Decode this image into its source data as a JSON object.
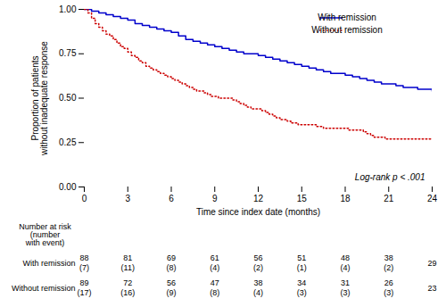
{
  "chart_data": {
    "type": "step",
    "xlabel": "Time since index date (months)",
    "ylabel": "Proportion of patients\nwithout inadequate response",
    "series": [
      {
        "name": "With remission",
        "color": "#0000CC",
        "line_style": "solid",
        "x": [
          0,
          0.5,
          1,
          1.5,
          2,
          2.5,
          3,
          3.5,
          4,
          4.5,
          5,
          5.5,
          6,
          6.5,
          7,
          7.5,
          8,
          8.5,
          9,
          9.5,
          10,
          10.5,
          11,
          11.5,
          12,
          12.5,
          13,
          13.5,
          14,
          14.5,
          15,
          15.5,
          16,
          16.5,
          17,
          17.5,
          18,
          18.5,
          19,
          19.5,
          20,
          20.5,
          21,
          21.5,
          22,
          22.5,
          23,
          23.5,
          24
        ],
        "values": [
          1.0,
          0.99,
          0.98,
          0.97,
          0.96,
          0.95,
          0.94,
          0.92,
          0.91,
          0.9,
          0.89,
          0.88,
          0.87,
          0.85,
          0.83,
          0.82,
          0.81,
          0.8,
          0.79,
          0.78,
          0.77,
          0.76,
          0.75,
          0.75,
          0.74,
          0.73,
          0.72,
          0.71,
          0.7,
          0.69,
          0.68,
          0.67,
          0.66,
          0.65,
          0.64,
          0.64,
          0.63,
          0.62,
          0.61,
          0.6,
          0.59,
          0.58,
          0.58,
          0.57,
          0.56,
          0.56,
          0.55,
          0.55,
          0.54
        ]
      },
      {
        "name": "Without remission",
        "color": "#CC0000",
        "line_style": "dotted",
        "x": [
          0,
          0.25,
          0.5,
          0.75,
          1.0,
          1.25,
          1.5,
          1.75,
          2.0,
          2.25,
          2.5,
          2.75,
          3.0,
          3.25,
          3.5,
          3.75,
          4.0,
          4.25,
          4.5,
          4.75,
          5.0,
          5.25,
          5.5,
          5.75,
          6.0,
          6.25,
          6.5,
          6.75,
          7.0,
          7.25,
          7.5,
          7.75,
          8.0,
          8.25,
          8.5,
          8.75,
          9.0,
          9.25,
          9.5,
          9.75,
          10.0,
          10.25,
          10.5,
          10.75,
          11.0,
          11.25,
          11.5,
          11.75,
          12.0,
          12.25,
          12.5,
          12.75,
          13.0,
          13.25,
          13.5,
          13.75,
          14.0,
          14.25,
          14.5,
          14.75,
          15.0,
          15.25,
          15.5,
          15.75,
          16.0,
          16.25,
          16.5,
          16.75,
          17.0,
          17.25,
          17.5,
          17.75,
          18.0,
          18.25,
          18.5,
          18.75,
          19.0,
          19.25,
          19.5,
          19.75,
          20.0,
          20.25,
          20.5,
          20.75,
          21.0,
          21.25,
          21.5,
          21.75,
          22.0,
          22.25,
          22.5,
          22.75,
          23.0,
          23.25,
          23.5,
          23.75,
          24.0
        ],
        "values": [
          1.0,
          0.98,
          0.95,
          0.92,
          0.9,
          0.88,
          0.86,
          0.85,
          0.83,
          0.81,
          0.79,
          0.78,
          0.76,
          0.74,
          0.73,
          0.71,
          0.7,
          0.68,
          0.67,
          0.66,
          0.65,
          0.64,
          0.63,
          0.62,
          0.61,
          0.6,
          0.59,
          0.58,
          0.57,
          0.56,
          0.55,
          0.54,
          0.54,
          0.53,
          0.52,
          0.51,
          0.51,
          0.5,
          0.5,
          0.5,
          0.5,
          0.49,
          0.48,
          0.47,
          0.46,
          0.45,
          0.44,
          0.44,
          0.44,
          0.43,
          0.42,
          0.41,
          0.4,
          0.39,
          0.38,
          0.38,
          0.37,
          0.36,
          0.36,
          0.35,
          0.35,
          0.35,
          0.35,
          0.35,
          0.34,
          0.34,
          0.33,
          0.33,
          0.33,
          0.33,
          0.33,
          0.33,
          0.33,
          0.32,
          0.32,
          0.32,
          0.32,
          0.31,
          0.3,
          0.29,
          0.28,
          0.28,
          0.28,
          0.27,
          0.27,
          0.27,
          0.27,
          0.27,
          0.27,
          0.27,
          0.27,
          0.27,
          0.27,
          0.27,
          0.27,
          0.27,
          0.27
        ]
      }
    ],
    "xlim": [
      0,
      24
    ],
    "ylim": [
      0.0,
      1.0
    ],
    "xticks": [
      0,
      3,
      6,
      9,
      12,
      15,
      18,
      21,
      24
    ],
    "yticks": [
      {
        "value": 0.0,
        "label": "0.00"
      },
      0.25,
      {
        "value": 0.5,
        "label": "0.50"
      },
      0.75,
      {
        "value": 1.0,
        "label": "1.00"
      }
    ],
    "grid": false,
    "legend": "upper right",
    "annotations": [
      {
        "text": "Log-rank p < .001"
      }
    ],
    "risk_table": {
      "label": "Number at risk\n(number\nwith event)",
      "times": [
        0,
        3,
        6,
        9,
        12,
        15,
        18,
        21,
        24
      ],
      "rows": [
        {
          "name": "With remission",
          "at_risk": [
            88,
            81,
            69,
            61,
            56,
            51,
            48,
            38,
            29
          ],
          "events": [
            7,
            11,
            8,
            4,
            2,
            1,
            4,
            2,
            null
          ],
          "event_labels": [
            "(7)",
            "(11)",
            "(8)",
            "(4)",
            "(2)",
            "(1)",
            "(4)",
            "(2)",
            null
          ]
        },
        {
          "name": "Without remission",
          "at_risk": [
            89,
            72,
            56,
            47,
            38,
            34,
            31,
            26,
            23
          ],
          "events": [
            17,
            16,
            9,
            8,
            4,
            3,
            3,
            3,
            null
          ],
          "event_labels": [
            "(17)",
            "(16)",
            "(9)",
            "(8)",
            "(4)",
            "(3)",
            "(3)",
            "(3)",
            null
          ]
        }
      ]
    }
  }
}
